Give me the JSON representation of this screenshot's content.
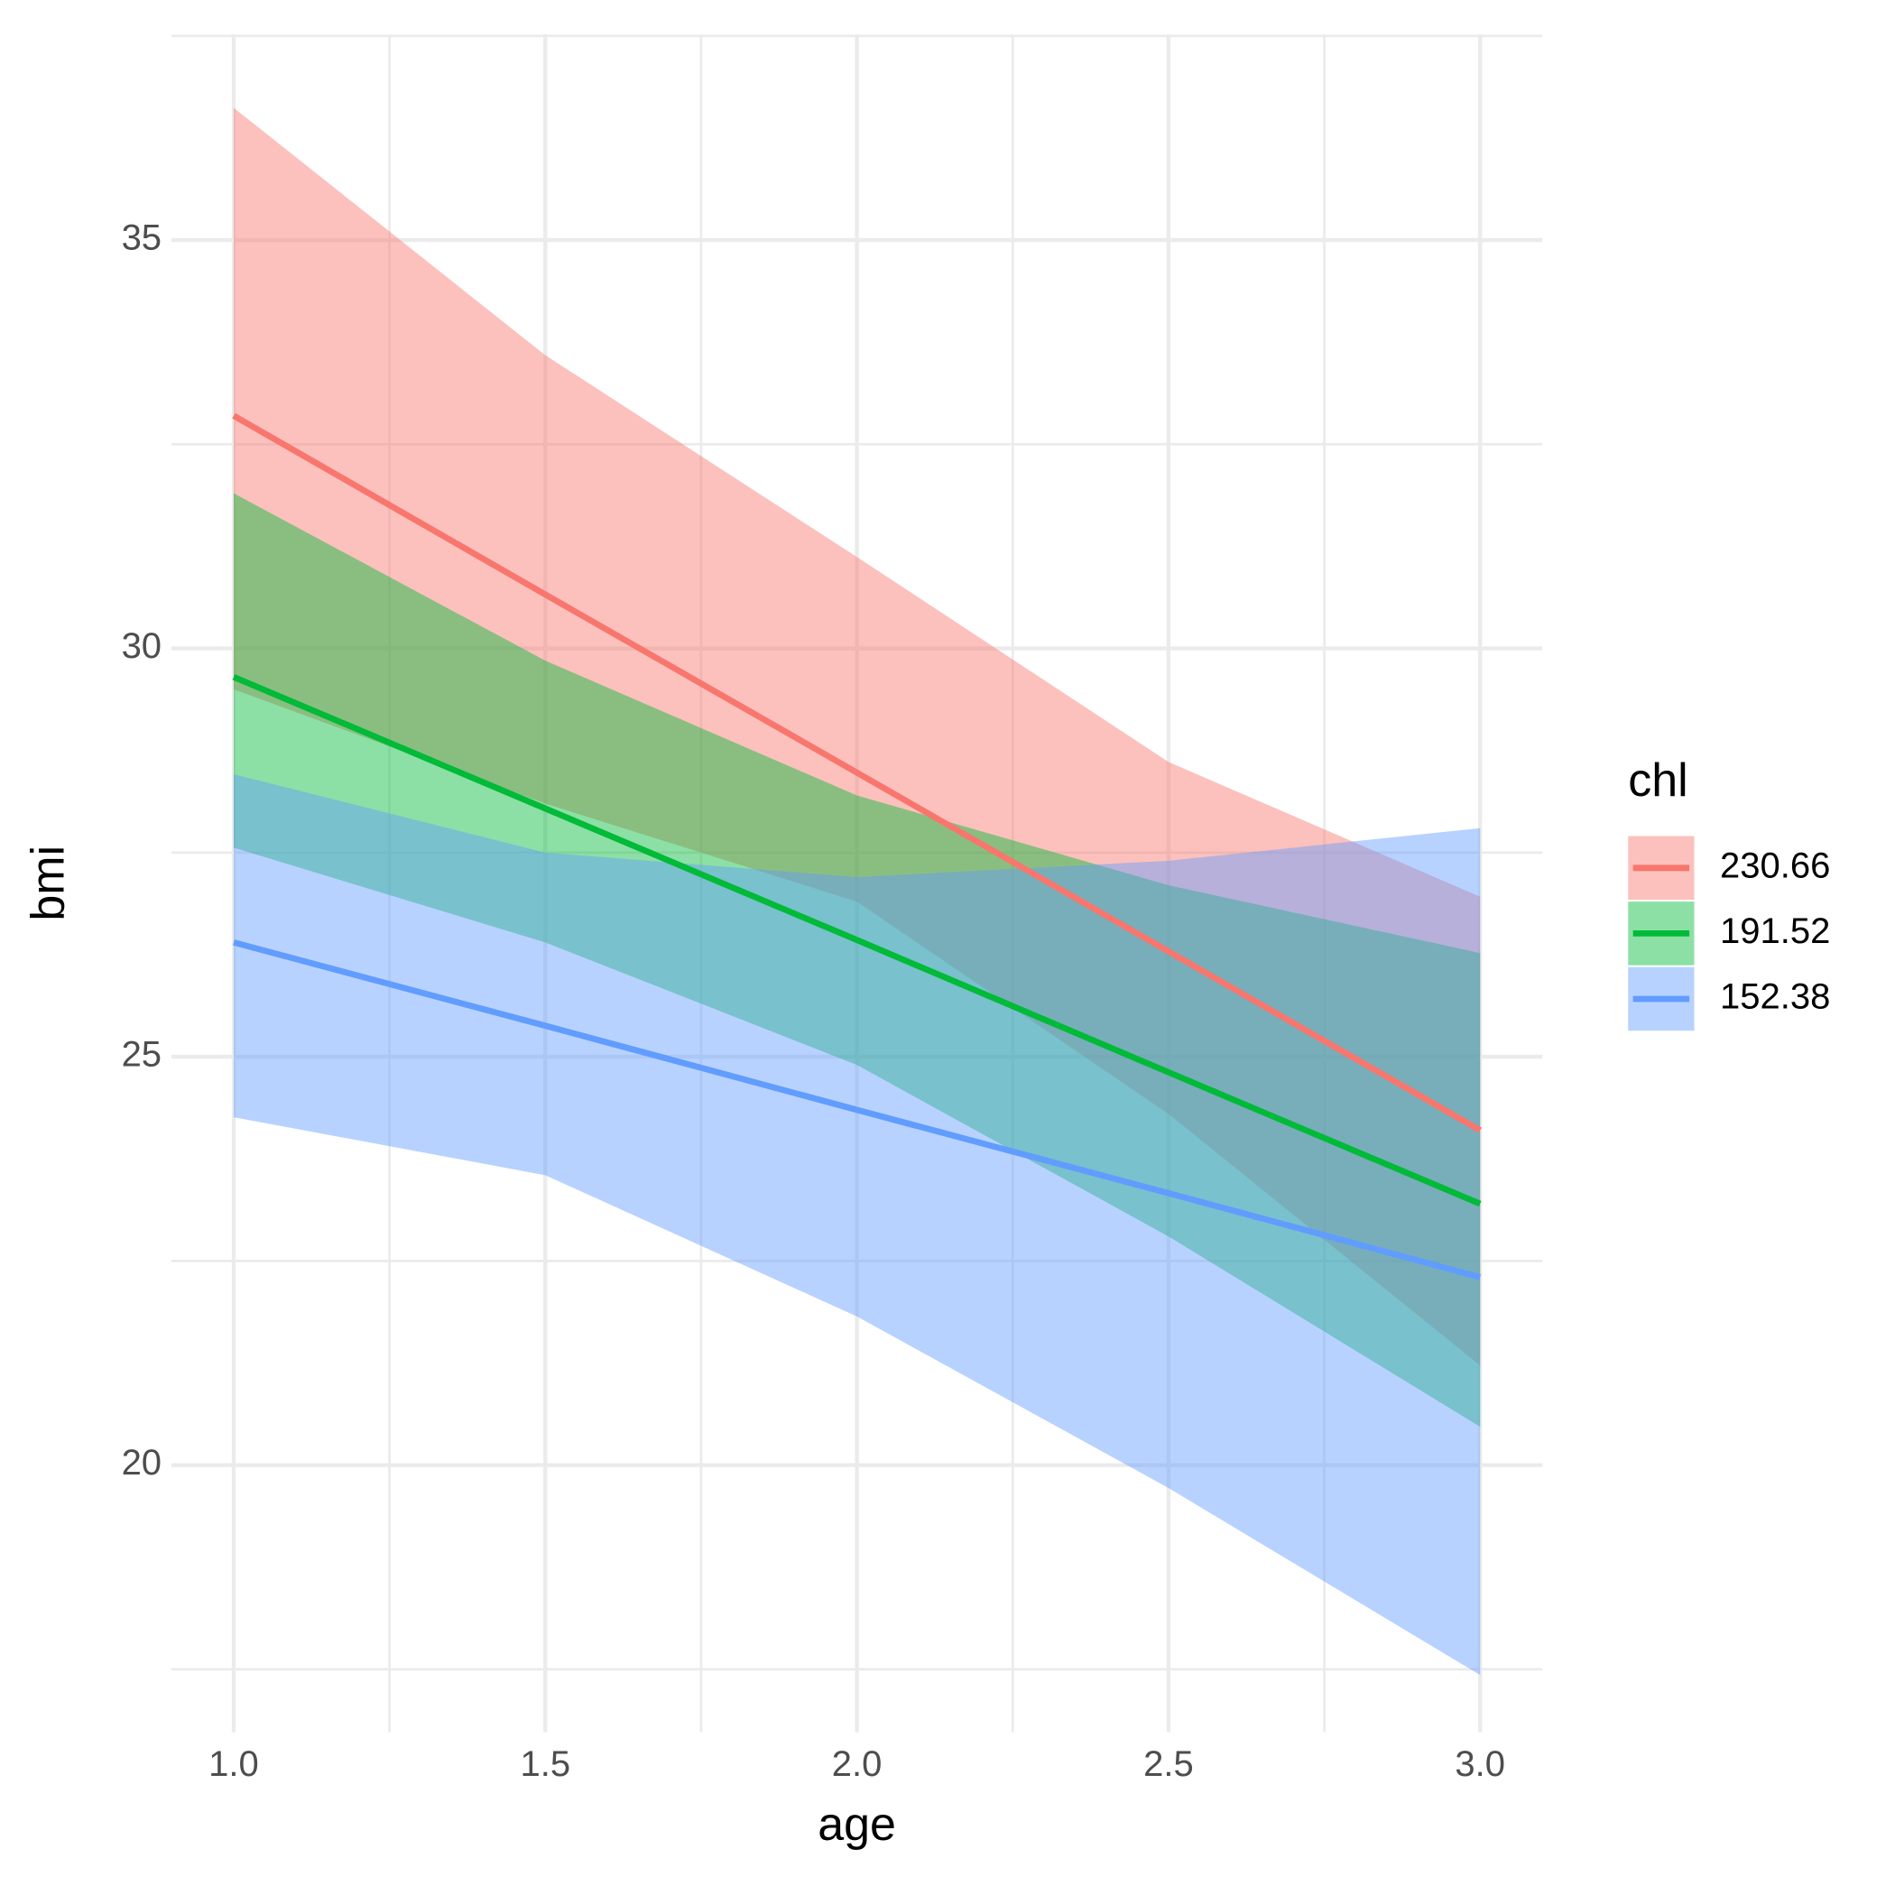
{
  "chart_data": {
    "type": "line",
    "x_label": "age",
    "y_label": "bmi",
    "legend_title": "chl",
    "legend": "right",
    "grid": true,
    "x": [
      1,
      1.5,
      2,
      2.5,
      3
    ],
    "xlim": [
      0.9,
      3.1
    ],
    "xticks": [
      {
        "value": 1,
        "label": "1.0"
      },
      {
        "value": 1.5,
        "label": "1.5"
      },
      {
        "value": 2,
        "label": "2.0"
      },
      {
        "value": 2.5,
        "label": "2.5"
      },
      {
        "value": 3,
        "label": "3.0"
      }
    ],
    "ylim": [
      16.73,
      37.52
    ],
    "yticks": [
      20,
      25,
      30,
      35
    ],
    "series": [
      {
        "name": "230.66",
        "color": "#F8766D",
        "values": [
          32.85,
          30.66,
          28.48,
          26.29,
          24.1
        ],
        "lower": [
          29.5,
          28.1,
          26.9,
          24.3,
          21.22
        ],
        "upper": [
          36.62,
          33.59,
          31.12,
          28.61,
          26.96
        ]
      },
      {
        "name": "191.52",
        "color": "#00BA38",
        "values": [
          29.65,
          28.04,
          26.43,
          24.81,
          23.2
        ],
        "lower": [
          27.56,
          26.4,
          24.9,
          22.8,
          20.47
        ],
        "upper": [
          31.9,
          29.85,
          28.2,
          27.1,
          26.27
        ]
      },
      {
        "name": "152.38",
        "color": "#619CFF",
        "values": [
          26.4,
          25.38,
          24.35,
          23.33,
          22.3
        ],
        "lower": [
          24.26,
          23.55,
          21.82,
          19.72,
          17.43
        ],
        "upper": [
          28.46,
          27.5,
          27.2,
          27.4,
          27.8
        ]
      }
    ]
  }
}
